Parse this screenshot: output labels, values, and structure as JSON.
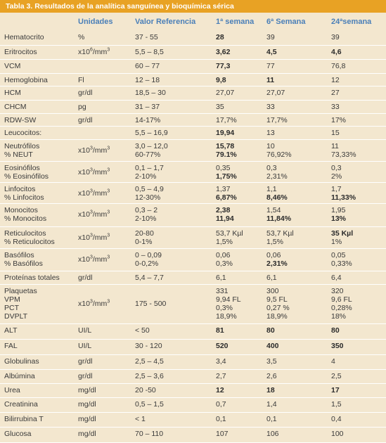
{
  "title": "Tabla 3.  Resultados de la analítica sanguínea y bioquímica sérica",
  "headers": [
    "",
    "Unidades",
    "Valor Referencia",
    "1ª semana",
    "6ª  Semana",
    "24ªsemana"
  ],
  "rows": [
    {
      "h": 20,
      "name": [
        "Hematocrito"
      ],
      "unit": "%",
      "ref": [
        "37 - 55"
      ],
      "w1": [
        {
          "t": "28",
          "b": true
        }
      ],
      "w6": [
        {
          "t": "39"
        }
      ],
      "w24": [
        {
          "t": "39"
        }
      ]
    },
    {
      "h": 20,
      "name": [
        "Eritrocitos"
      ],
      "unit": "x10⁶/mm³",
      "ref": [
        "5,5 – 8,5"
      ],
      "w1": [
        {
          "t": "3,62",
          "b": true
        }
      ],
      "w6": [
        {
          "t": "4,5",
          "b": true
        }
      ],
      "w24": [
        {
          "t": "4,6",
          "b": true
        }
      ]
    },
    {
      "h": 20,
      "name": [
        "VCM"
      ],
      "unit": "",
      "ref": [
        "60 – 77"
      ],
      "w1": [
        {
          "t": "77,3",
          "b": true
        }
      ],
      "w6": [
        {
          "t": "77"
        }
      ],
      "w24": [
        {
          "t": "76,8"
        }
      ]
    },
    {
      "h": 18,
      "name": [
        "Hemoglobina"
      ],
      "unit": "Fl",
      "ref": [
        "12 – 18"
      ],
      "w1": [
        {
          "t": "9,8",
          "b": true
        }
      ],
      "w6": [
        {
          "t": "11",
          "b": true
        }
      ],
      "w24": [
        {
          "t": "12"
        }
      ]
    },
    {
      "h": 20,
      "name": [
        "HCM"
      ],
      "unit": "gr/dl",
      "ref": [
        "18,5 – 30"
      ],
      "w1": [
        {
          "t": "27,07"
        }
      ],
      "w6": [
        {
          "t": "27,07"
        }
      ],
      "w24": [
        {
          "t": "27"
        }
      ]
    },
    {
      "h": 19,
      "name": [
        "CHCM"
      ],
      "unit": "pg",
      "ref": [
        "31 – 37"
      ],
      "w1": [
        {
          "t": "35"
        }
      ],
      "w6": [
        {
          "t": "33"
        }
      ],
      "w24": [
        {
          "t": "33"
        }
      ]
    },
    {
      "h": 18,
      "name": [
        "RDW-SW"
      ],
      "unit": "gr/dl",
      "ref": [
        "14-17%"
      ],
      "w1": [
        {
          "t": "17,7%"
        }
      ],
      "w6": [
        {
          "t": "17,7%"
        }
      ],
      "w24": [
        {
          "t": "17%"
        }
      ]
    },
    {
      "h": 19,
      "name": [
        "Leucocitos:"
      ],
      "unit": "",
      "ref": [
        "5,5 – 16,9"
      ],
      "w1": [
        {
          "t": "19,94",
          "b": true
        }
      ],
      "w6": [
        {
          "t": "13"
        }
      ],
      "w24": [
        {
          "t": "15"
        }
      ]
    },
    {
      "h": 31,
      "name": [
        "Neutrófilos",
        "% NEUT"
      ],
      "unit": "x10³/mm³",
      "ref": [
        "3,0 – 12,0",
        "60-77%"
      ],
      "w1": [
        {
          "t": "15,78",
          "b": true
        },
        {
          "t": "79.1%",
          "b": true
        }
      ],
      "w6": [
        {
          "t": "10"
        },
        {
          "t": "76,92%"
        }
      ],
      "w24": [
        {
          "t": "11"
        },
        {
          "t": "73,33%"
        }
      ]
    },
    {
      "h": 30,
      "name": [
        "Eosinófilos",
        "% Eosinófilos"
      ],
      "unit": "x10³/mm³",
      "ref": [
        "0,1 – 1,7",
        "2-10%"
      ],
      "w1": [
        {
          "t": "0,35"
        },
        {
          "t": "1,75%",
          "b": true
        }
      ],
      "w6": [
        {
          "t": "0,3"
        },
        {
          "t": "2,31%"
        }
      ],
      "w24": [
        {
          "t": "0,3"
        },
        {
          "t": "2%"
        }
      ]
    },
    {
      "h": 30,
      "name": [
        "Linfocitos",
        "% Linfocitos"
      ],
      "unit": "x10³/mm³",
      "ref": [
        "0,5 – 4,9",
        "12-30%"
      ],
      "w1": [
        {
          "t": "1,37"
        },
        {
          "t": "6,87%",
          "b": true
        }
      ],
      "w6": [
        {
          "t": "1,1"
        },
        {
          "t": "8,46%",
          "b": true
        }
      ],
      "w24": [
        {
          "t": "1,7"
        },
        {
          "t": "11,33%",
          "b": true
        }
      ]
    },
    {
      "h": 33,
      "name": [
        "Monocitos",
        "% Monocitos"
      ],
      "unit": "x10³/mm³",
      "ref": [
        "0,3 – 2",
        "2-10%"
      ],
      "w1": [
        {
          "t": "2,38",
          "b": true
        },
        {
          "t": "11,94",
          "b": true
        }
      ],
      "w6": [
        {
          "t": "1,54"
        },
        {
          "t": "11,84%",
          "b": true
        }
      ],
      "w24": [
        {
          "t": "1,95"
        },
        {
          "t": "13%",
          "b": true
        }
      ]
    },
    {
      "h": 31,
      "name": [
        "Reticulocitos",
        "% Reticulocitos"
      ],
      "unit": "x10³/mm³",
      "ref": [
        "20-80",
        "0-1%"
      ],
      "w1": [
        {
          "t": "53,7 Kµl"
        },
        {
          "t": "1,5%"
        }
      ],
      "w6": [
        {
          "t": "53,7 Kµl"
        },
        {
          "t": "1,5%"
        }
      ],
      "w24": [
        {
          "t": "35 Kµl",
          "b": true
        },
        {
          "t": "1%"
        }
      ]
    },
    {
      "h": 32,
      "name": [
        "Basófilos",
        "% Basófilos"
      ],
      "unit": "x10³/mm³",
      "ref": [
        "0 – 0,09",
        "0-0,2%"
      ],
      "w1": [
        {
          "t": "0,06"
        },
        {
          "t": "0,3%"
        }
      ],
      "w6": [
        {
          "t": "0,06"
        },
        {
          "t": "2,31%",
          "b": true
        }
      ],
      "w24": [
        {
          "t": "0,05"
        },
        {
          "t": "0,33%"
        }
      ]
    },
    {
      "h": 19,
      "name": [
        "Proteínas totales"
      ],
      "unit": "gr/dl",
      "ref": [
        "5,4 – 7,7"
      ],
      "w1": [
        {
          "t": "6,1"
        }
      ],
      "w6": [
        {
          "t": "6,1"
        }
      ],
      "w24": [
        {
          "t": "6,4"
        }
      ]
    },
    {
      "h": 56,
      "name": [
        "Plaquetas",
        "VPM",
        "PCT",
        "DVPLT"
      ],
      "unit": "x10³/mm³",
      "ref": [
        "175 - 500"
      ],
      "w1": [
        {
          "t": "331"
        },
        {
          "t": "9,94 FL"
        },
        {
          "t": "0,3%"
        },
        {
          "t": "18,9%"
        }
      ],
      "w6": [
        {
          "t": "300"
        },
        {
          "t": "9,5 FL"
        },
        {
          "t": "0,27 %"
        },
        {
          "t": "18,9%"
        }
      ],
      "w24": [
        {
          "t": "320"
        },
        {
          "t": "9,6 FL"
        },
        {
          "t": "0,28%"
        },
        {
          "t": "18%"
        }
      ]
    },
    {
      "h": 22,
      "name": [
        "ALT"
      ],
      "unit": "UI/L",
      "ref": [
        "< 50"
      ],
      "w1": [
        {
          "t": "81",
          "b": true
        }
      ],
      "w6": [
        {
          "t": "80",
          "b": true
        }
      ],
      "w24": [
        {
          "t": "80",
          "b": true
        }
      ]
    },
    {
      "h": 22,
      "name": [
        "FAL"
      ],
      "unit": "UI/L",
      "ref": [
        "30 - 120"
      ],
      "w1": [
        {
          "t": "520",
          "b": true
        }
      ],
      "w6": [
        {
          "t": "400",
          "b": true
        }
      ],
      "w24": [
        {
          "t": "350",
          "b": true
        }
      ]
    },
    {
      "h": 21,
      "name": [
        "Globulinas"
      ],
      "unit": "gr/dl",
      "ref": [
        "2,5 – 4,5"
      ],
      "w1": [
        {
          "t": "3,4"
        }
      ],
      "w6": [
        {
          "t": "3,5"
        }
      ],
      "w24": [
        {
          "t": "4"
        }
      ]
    },
    {
      "h": 20,
      "name": [
        "Albúmina"
      ],
      "unit": "gr/dl",
      "ref": [
        "2,5 – 3,6"
      ],
      "w1": [
        {
          "t": "2,7"
        }
      ],
      "w6": [
        {
          "t": "2,6"
        }
      ],
      "w24": [
        {
          "t": "2,5"
        }
      ]
    },
    {
      "h": 20,
      "name": [
        "Urea"
      ],
      "unit": "mg/dl",
      "ref": [
        "20 -50"
      ],
      "w1": [
        {
          "t": "12",
          "b": true
        }
      ],
      "w6": [
        {
          "t": "18",
          "b": true
        }
      ],
      "w24": [
        {
          "t": "17",
          "b": true
        }
      ]
    },
    {
      "h": 21,
      "name": [
        "Creatinina"
      ],
      "unit": "mg/dl",
      "ref": [
        "0,5 – 1,5"
      ],
      "w1": [
        {
          "t": "0,7"
        }
      ],
      "w6": [
        {
          "t": "1,4"
        }
      ],
      "w24": [
        {
          "t": "1,5"
        }
      ]
    },
    {
      "h": 21,
      "name": [
        "Bilirrubina T"
      ],
      "unit": "mg/dl",
      "ref": [
        "< 1"
      ],
      "w1": [
        {
          "t": "0,1"
        }
      ],
      "w6": [
        {
          "t": "0,1"
        }
      ],
      "w24": [
        {
          "t": "0,4"
        }
      ]
    },
    {
      "h": 22,
      "name": [
        "Glucosa"
      ],
      "unit": "mg/dl",
      "ref": [
        "70 – 110"
      ],
      "w1": [
        {
          "t": "107"
        }
      ],
      "w6": [
        {
          "t": "106"
        }
      ],
      "w24": [
        {
          "t": "100"
        }
      ]
    }
  ]
}
